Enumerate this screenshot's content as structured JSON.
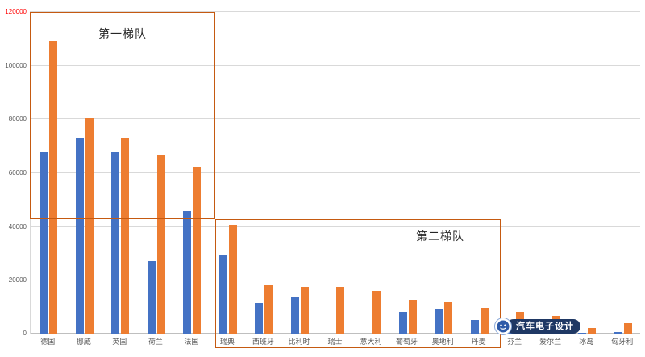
{
  "chart_data": {
    "type": "bar",
    "categories": [
      "德国",
      "挪威",
      "英国",
      "荷兰",
      "法国",
      "瑞典",
      "西班牙",
      "比利时",
      "瑞士",
      "意大利",
      "葡萄牙",
      "奥地利",
      "丹麦",
      "芬兰",
      "爱尔兰",
      "冰岛",
      "匈牙利"
    ],
    "series": [
      {
        "name": "blue-series",
        "color": "#4472c4",
        "values": [
          67500,
          73000,
          67500,
          27000,
          45500,
          29000,
          11500,
          13500,
          0,
          0,
          8000,
          9000,
          5000,
          1000,
          500,
          300,
          500
        ]
      },
      {
        "name": "orange-series",
        "color": "#ed7d31",
        "values": [
          109000,
          80000,
          73000,
          66500,
          62000,
          40500,
          18000,
          17500,
          17500,
          16000,
          12500,
          11800,
          9500,
          8000,
          6500,
          2000,
          4000
        ]
      }
    ],
    "title": "",
    "xlabel": "",
    "ylabel": "",
    "ylim": [
      0,
      120000
    ],
    "ytick_step": 20000,
    "yticks": [
      "0",
      "20000",
      "40000",
      "60000",
      "80000",
      "100000",
      "120000"
    ],
    "ytick_top_color": "#ff0000",
    "ytick_color": "#595959",
    "grid": true,
    "legend": "none",
    "annotations": [
      {
        "label": "第一梯队"
      },
      {
        "label": "第二梯队"
      }
    ]
  },
  "watermark": {
    "text": "汽车电子设计"
  }
}
